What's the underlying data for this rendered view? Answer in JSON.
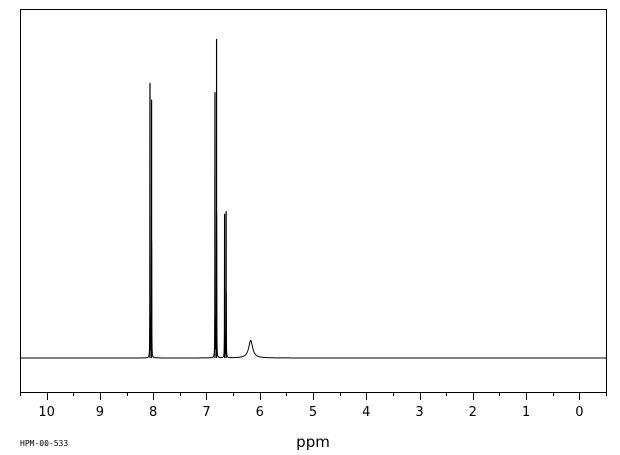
{
  "chart_data": {
    "type": "line",
    "xlabel": "ppm",
    "ylabel": "",
    "spectrum_id": "HPM-00-533",
    "xlim": [
      10.5,
      -0.5
    ],
    "ylim": [
      0,
      1
    ],
    "x_reversed": true,
    "ticks": [
      10,
      9,
      8,
      7,
      6,
      5,
      4,
      3,
      2,
      1,
      0
    ],
    "tick_labels": [
      "10",
      "9",
      "8",
      "7",
      "6",
      "5",
      "4",
      "3",
      "2",
      "1",
      "0"
    ],
    "minor_tick_step": 0.5,
    "grid": false,
    "series": [
      {
        "peaks": [
          {
            "ppm": 8.06,
            "height": 0.86
          },
          {
            "ppm": 8.03,
            "height": 0.81
          },
          {
            "ppm": 6.84,
            "height": 0.83
          },
          {
            "ppm": 6.81,
            "height": 1.0
          },
          {
            "ppm": 6.66,
            "height": 0.45
          },
          {
            "ppm": 6.63,
            "height": 0.46
          },
          {
            "ppm": 6.17,
            "height": 0.055,
            "broad": true
          }
        ]
      }
    ]
  }
}
